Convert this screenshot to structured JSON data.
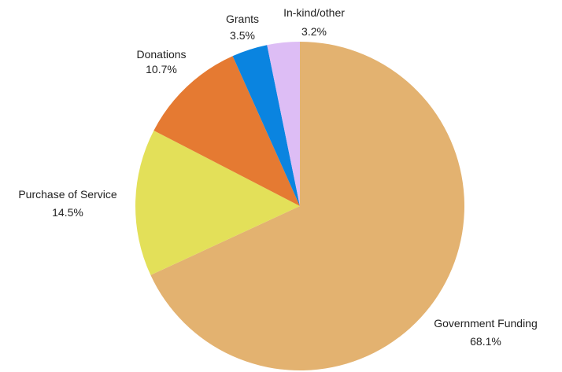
{
  "chart_data": {
    "type": "pie",
    "slices": [
      {
        "name": "Government Funding",
        "value": 68.1,
        "label": "68.1%",
        "color": "#E3B270"
      },
      {
        "name": "Purchase of Service",
        "value": 14.5,
        "label": "14.5%",
        "color": "#E3E059"
      },
      {
        "name": "Donations",
        "value": 10.7,
        "label": "10.7%",
        "color": "#E57A32"
      },
      {
        "name": "Grants",
        "value": 3.5,
        "label": "3.5%",
        "color": "#0A84E0"
      },
      {
        "name": "In-kind/other",
        "value": 3.2,
        "label": "3.2%",
        "color": "#DDBDF5"
      }
    ],
    "start_angle_deg": 0,
    "direction": "clockwise",
    "legend": "none"
  }
}
